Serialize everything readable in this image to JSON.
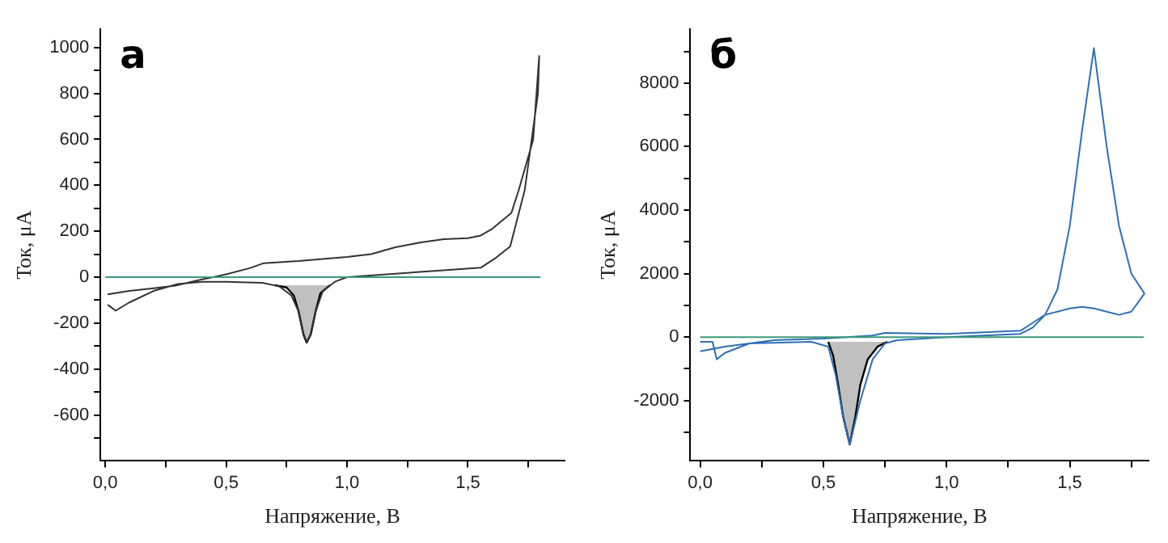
{
  "chart_data": [
    {
      "type": "line",
      "title": "а",
      "xlabel": "Напряжение, В",
      "ylabel": "Ток, μA",
      "xlim": [
        -0.02,
        1.9
      ],
      "ylim": [
        -800,
        1080
      ],
      "xticks": [
        {
          "value": 0,
          "label": "0,0"
        },
        {
          "value": 0.25,
          "label": null
        },
        {
          "value": 0.5,
          "label": "0,5"
        },
        {
          "value": 0.75,
          "label": null
        },
        {
          "value": 1,
          "label": "1,0"
        },
        {
          "value": 1.25,
          "label": null
        },
        {
          "value": 1.5,
          "label": "1,5"
        },
        {
          "value": 1.75,
          "label": null
        }
      ],
      "yticks": [
        {
          "value": -700,
          "label": null
        },
        -600,
        {
          "value": -500,
          "label": null
        },
        -400,
        {
          "value": -300,
          "label": null
        },
        -200,
        {
          "value": -100,
          "label": null
        },
        0,
        {
          "value": 100,
          "label": null
        },
        200,
        {
          "value": 300,
          "label": null
        },
        400,
        {
          "value": 500,
          "label": null
        },
        600,
        {
          "value": 700,
          "label": null
        },
        800,
        {
          "value": 900,
          "label": null
        },
        1000
      ],
      "grid": false,
      "legend": false,
      "marker": "none",
      "series": [
        {
          "type": "area",
          "color": "#c0c0c0",
          "x": [
            0.7,
            0.75,
            0.78,
            0.8,
            0.82,
            0.833,
            0.85,
            0.87,
            0.89,
            0.93
          ],
          "values": [
            -35,
            -45,
            -80,
            -150,
            -250,
            -285,
            -250,
            -150,
            -70,
            -35
          ]
        },
        {
          "type": "line",
          "color": "#333333",
          "x": [
            0.01,
            0.1,
            0.2,
            0.29,
            0.4,
            0.5,
            0.6,
            0.656,
            0.8,
            1.0,
            1.1,
            1.2,
            1.3,
            1.4,
            1.5,
            1.55,
            1.6,
            1.68,
            1.71,
            1.77,
            1.795,
            1.79,
            1.735,
            1.675,
            1.617,
            1.553,
            1.4,
            1.2,
            1.0,
            0.95,
            0.9,
            0.87,
            0.85,
            0.833,
            0.82,
            0.8,
            0.77,
            0.72,
            0.65,
            0.5,
            0.4,
            0.3,
            0.2,
            0.1,
            0.043,
            0.01
          ],
          "values": [
            -75,
            -60,
            -48,
            -37,
            -10,
            12,
            40,
            61,
            70,
            88,
            100,
            130,
            150,
            165,
            170,
            180,
            210,
            280,
            378,
            598,
            963,
            800,
            378,
            134,
            85,
            41,
            30,
            15,
            0,
            -20,
            -60,
            -150,
            -250,
            -285,
            -250,
            -150,
            -80,
            -40,
            -25,
            -20,
            -20,
            -30,
            -60,
            -110,
            -146,
            -120
          ]
        },
        {
          "type": "line",
          "color": "#3a9a7a",
          "x": [
            0,
            1.8
          ],
          "values": [
            0,
            0
          ]
        }
      ]
    },
    {
      "type": "line",
      "title": "б",
      "xlabel": "Напряжение, В",
      "ylabel": "Ток, μA",
      "xlim": [
        -0.04,
        1.82
      ],
      "ylim": [
        -3900,
        9700
      ],
      "xticks": [
        {
          "value": 0,
          "label": "0,0"
        },
        {
          "value": 0.25,
          "label": null
        },
        {
          "value": 0.5,
          "label": "0,5"
        },
        {
          "value": 0.75,
          "label": null
        },
        {
          "value": 1,
          "label": "1,0"
        },
        {
          "value": 1.25,
          "label": null
        },
        {
          "value": 1.5,
          "label": "1,5"
        },
        {
          "value": 1.75,
          "label": null
        }
      ],
      "yticks": [
        {
          "value": -3000,
          "label": null
        },
        -2000,
        {
          "value": -1000,
          "label": null
        },
        0,
        {
          "value": 1000,
          "label": null
        },
        2000,
        {
          "value": 3000,
          "label": null
        },
        4000,
        {
          "value": 5000,
          "label": null
        },
        6000,
        {
          "value": 7000,
          "label": null
        },
        8000,
        {
          "value": 9000,
          "label": null
        }
      ],
      "grid": false,
      "legend": false,
      "marker": "none",
      "series": [
        {
          "type": "area",
          "color": "#c0c0c0",
          "x": [
            0.52,
            0.54,
            0.56,
            0.58,
            0.607,
            0.63,
            0.65,
            0.68,
            0.72,
            0.76
          ],
          "values": [
            -150,
            -600,
            -1500,
            -2500,
            -3380,
            -2500,
            -1500,
            -700,
            -300,
            -150
          ]
        },
        {
          "type": "line",
          "color": "#2e6fb5",
          "x": [
            0.0,
            0.05,
            0.067,
            0.1,
            0.2,
            0.3,
            0.5,
            0.7,
            0.75,
            1.0,
            1.3,
            1.35,
            1.4,
            1.45,
            1.5,
            1.55,
            1.598,
            1.65,
            1.7,
            1.75,
            1.803,
            1.75,
            1.7,
            1.65,
            1.6,
            1.55,
            1.5,
            1.4,
            1.35,
            1.3,
            1.0,
            0.8,
            0.75,
            0.7,
            0.65,
            0.607,
            0.58,
            0.55,
            0.52,
            0.45,
            0.2,
            0.1,
            0.0
          ],
          "values": [
            -150,
            -150,
            -700,
            -500,
            -200,
            -100,
            -50,
            50,
            130,
            100,
            200,
            450,
            700,
            1500,
            3500,
            6500,
            9100,
            6000,
            3500,
            2000,
            1370,
            800,
            700,
            800,
            900,
            950,
            900,
            700,
            300,
            100,
            0,
            -100,
            -200,
            -700,
            -2000,
            -3380,
            -2500,
            -1200,
            -300,
            -150,
            -200,
            -300,
            -450
          ]
        },
        {
          "type": "line",
          "color": "#3a9a7a",
          "x": [
            0,
            1.8
          ],
          "values": [
            0,
            0
          ]
        }
      ]
    }
  ]
}
